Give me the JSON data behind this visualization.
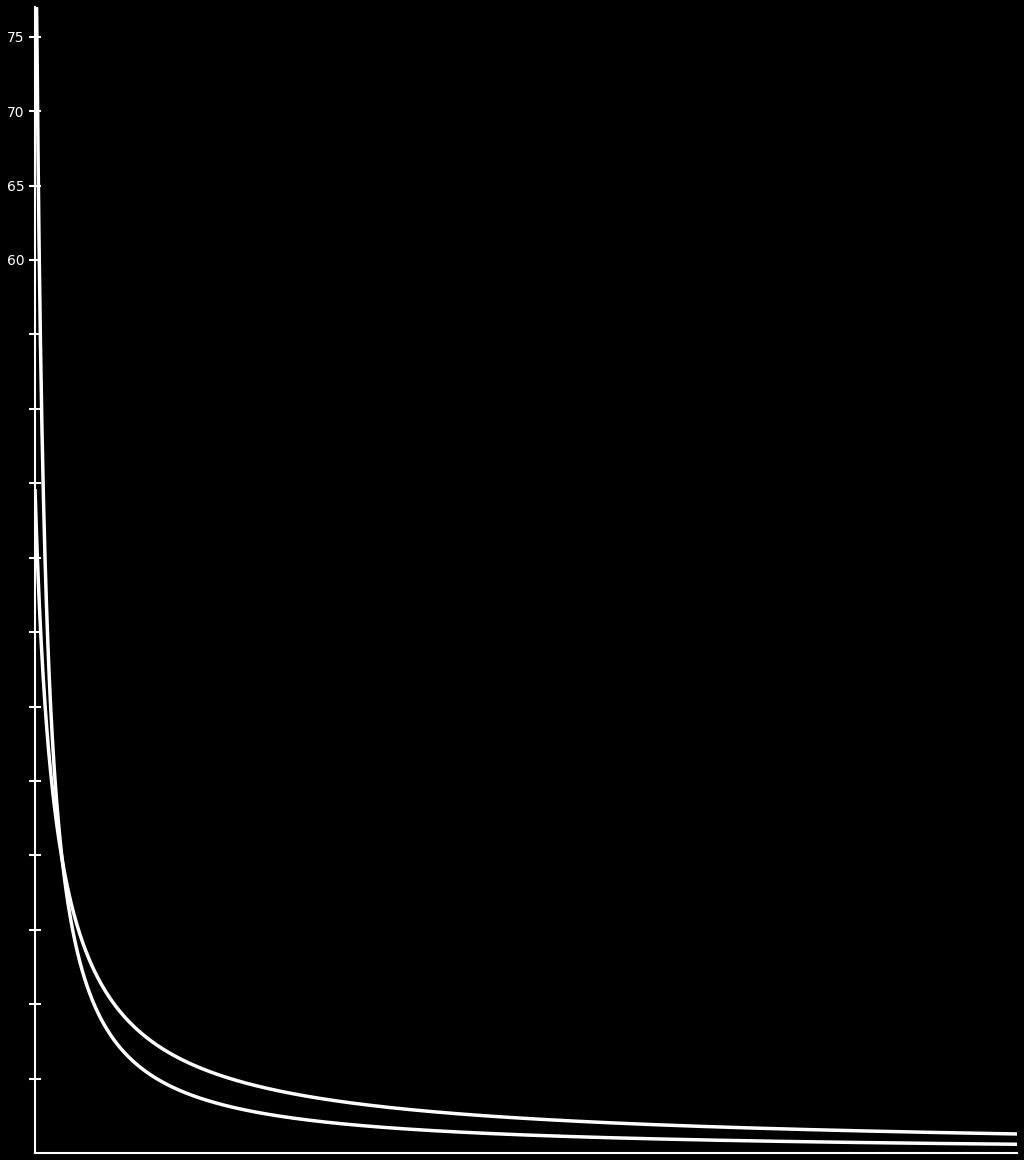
{
  "background_color": "#000000",
  "line_color": "#ffffff",
  "line_width": 2.5,
  "ylim": [
    0,
    77
  ],
  "xlim": [
    0,
    100
  ],
  "yticks": [
    75,
    70,
    65,
    60,
    55,
    50,
    45,
    40,
    35,
    30,
    25,
    20,
    15,
    10,
    5
  ],
  "ytick_labels_show": [
    75,
    70,
    65,
    60
  ],
  "tick_color": "#ffffff",
  "tick_label_color": "#ffffff",
  "tick_fontsize": 22,
  "axis_color": "#ffffff",
  "figsize": [
    10.24,
    11.6
  ],
  "dpi": 100,
  "curve1_a": 75,
  "curve1_b": 0.8,
  "curve1_c": 1.05,
  "curve2_a": 75,
  "curve2_b": 1.8,
  "curve2_c": 0.88
}
